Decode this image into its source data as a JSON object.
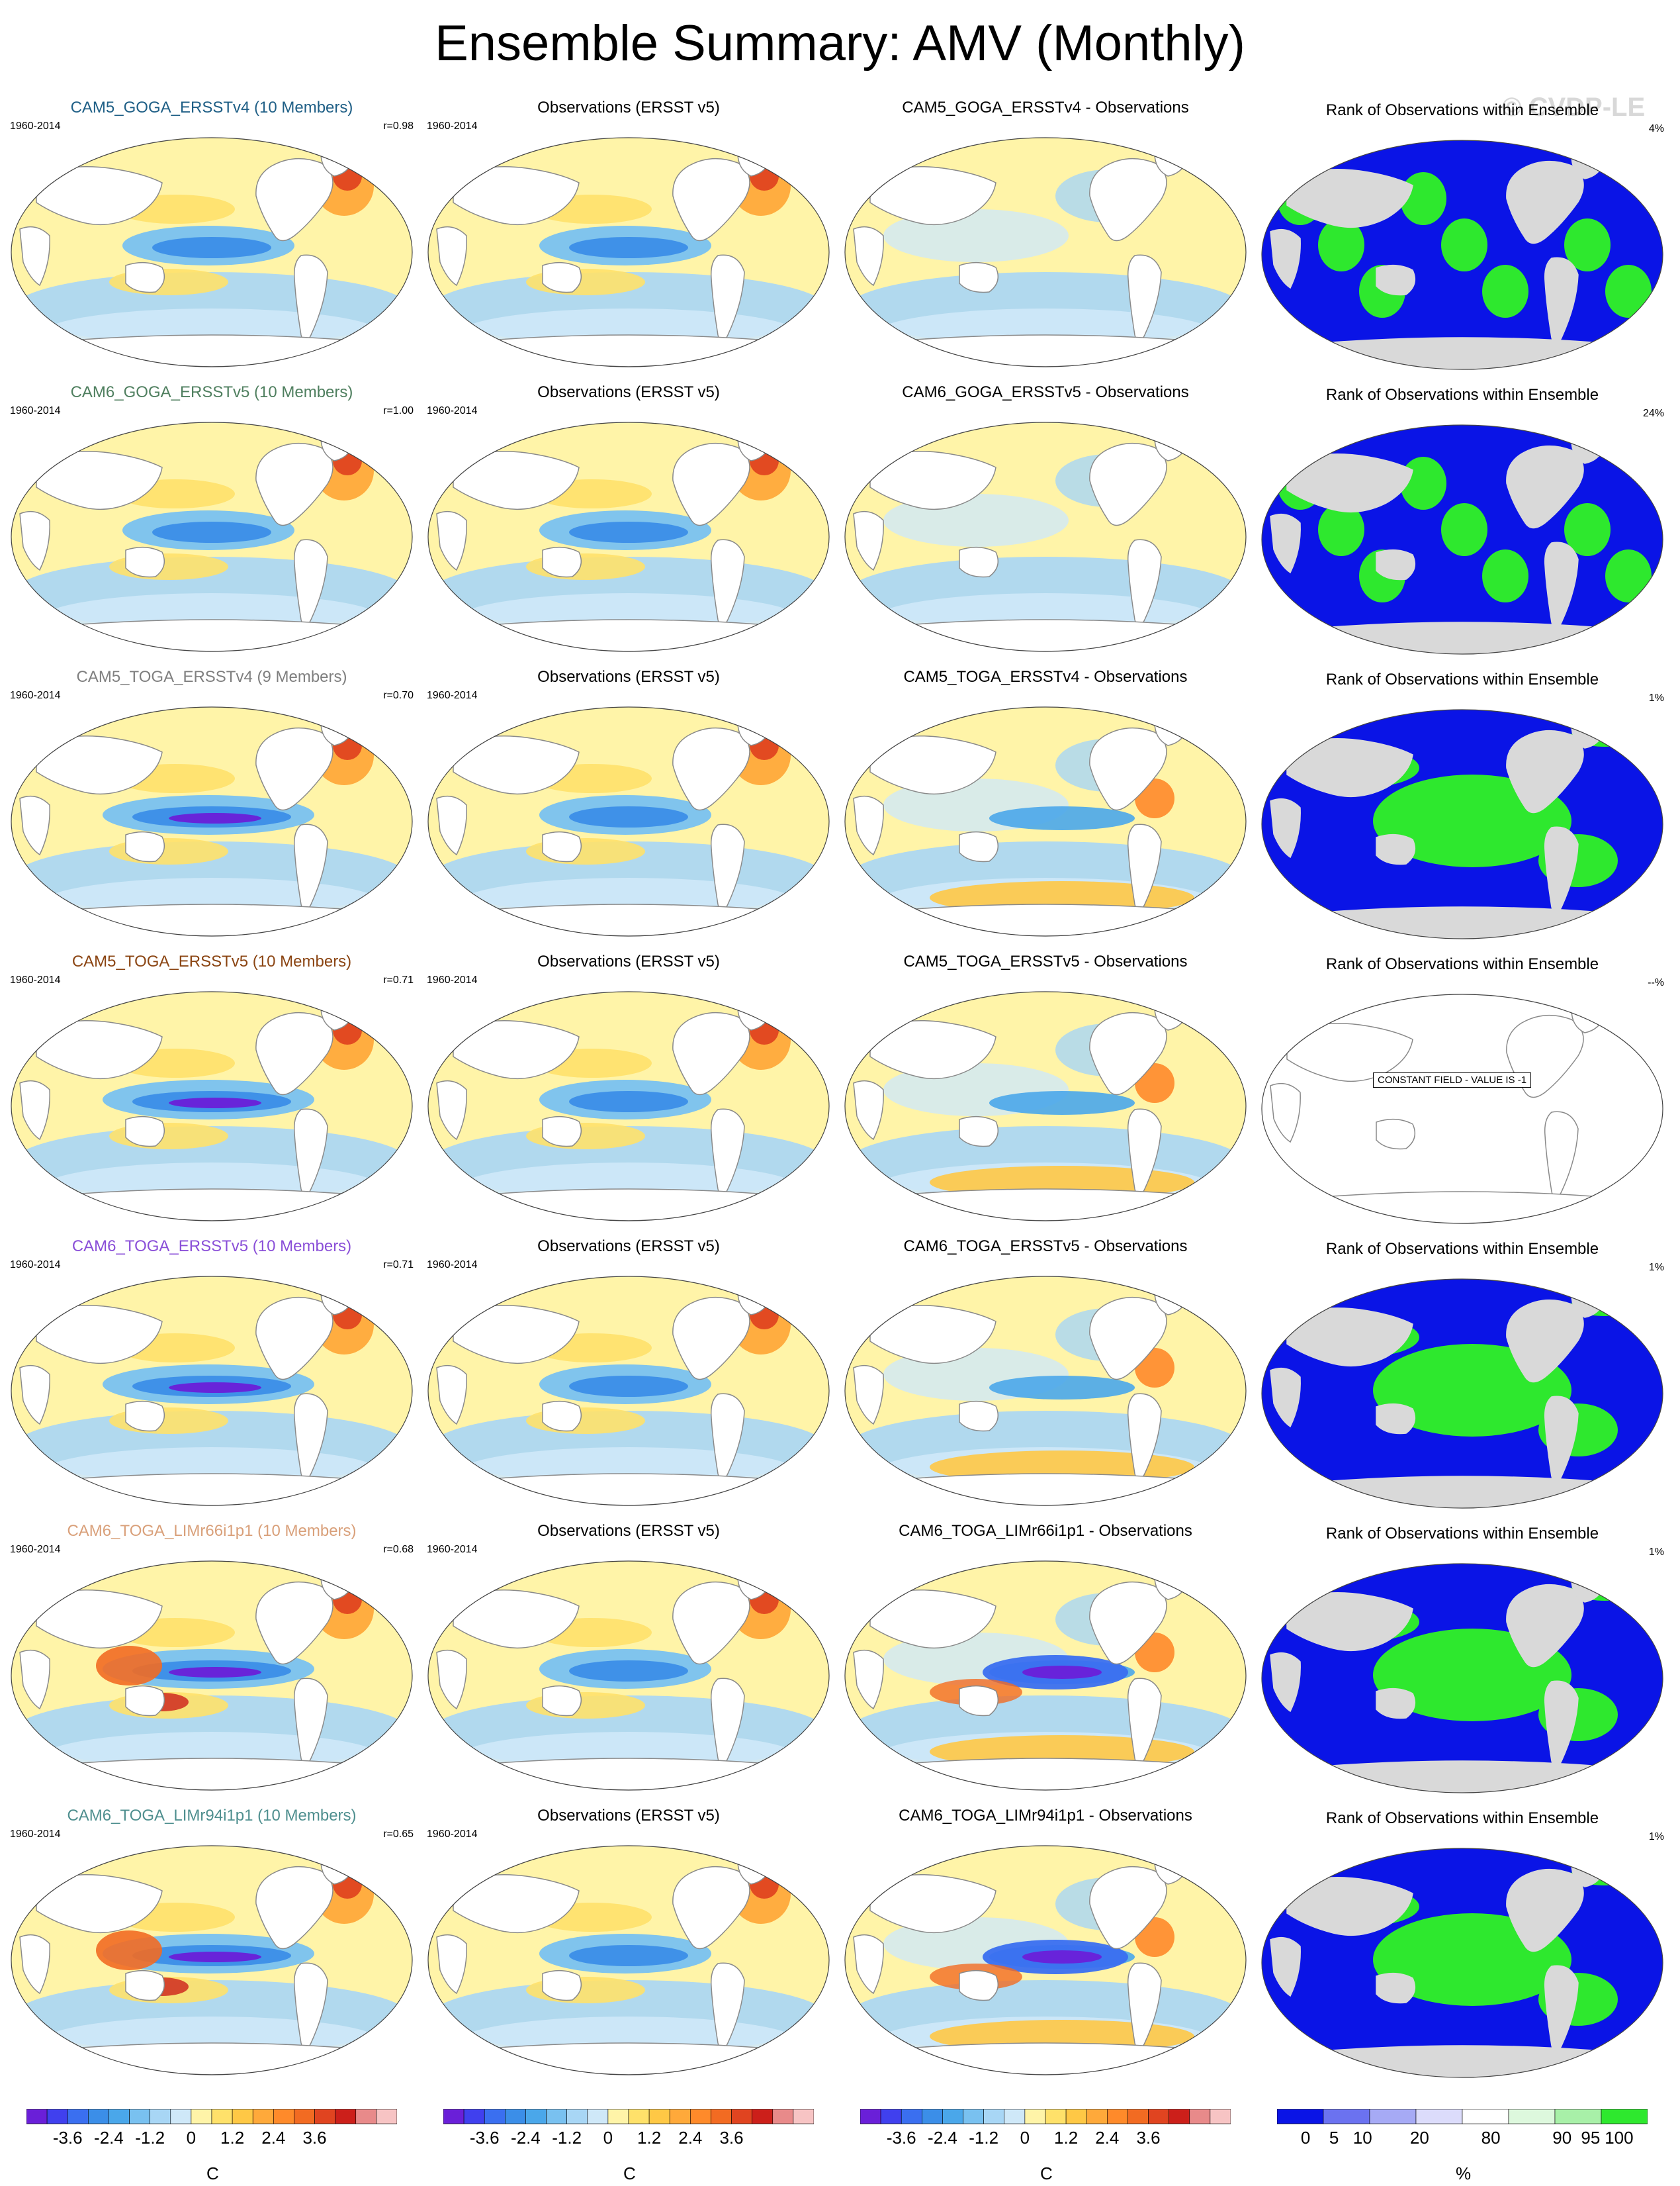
{
  "title": "Ensemble Summary: AMV (Monthly)",
  "watermark": "© CVDP-LE",
  "rows": [
    {
      "ens_title": "CAM5_GOGA_ERSSTv4 (10 Members)",
      "ens_color": "#1f5f86",
      "years": "1960-2014",
      "r": "r=0.98",
      "obs_title": "Observations (ERSST v5)",
      "diff_title": "CAM5_GOGA_ERSSTv4 - Observations",
      "rank_title": "Rank of Observations within Ensemble",
      "rank_pct": "4%"
    },
    {
      "ens_title": "CAM6_GOGA_ERSSTv5 (10 Members)",
      "ens_color": "#4f7f5f",
      "years": "1960-2014",
      "r": "r=1.00",
      "obs_title": "Observations (ERSST v5)",
      "diff_title": "CAM6_GOGA_ERSSTv5 - Observations",
      "rank_title": "Rank of Observations within Ensemble",
      "rank_pct": "24%"
    },
    {
      "ens_title": "CAM5_TOGA_ERSSTv4 (9 Members)",
      "ens_color": "#7f7f7f",
      "years": "1960-2014",
      "r": "r=0.70",
      "obs_title": "Observations (ERSST v5)",
      "diff_title": "CAM5_TOGA_ERSSTv4 - Observations",
      "rank_title": "Rank of Observations within Ensemble",
      "rank_pct": "1%"
    },
    {
      "ens_title": "CAM5_TOGA_ERSSTv5 (10 Members)",
      "ens_color": "#8b4513",
      "years": "1960-2014",
      "r": "r=0.71",
      "obs_title": "Observations (ERSST v5)",
      "diff_title": "CAM5_TOGA_ERSSTv5 - Observations",
      "rank_title": "Rank of Observations within Ensemble",
      "rank_pct": "--%",
      "constant_field": "CONSTANT FIELD - VALUE IS -1"
    },
    {
      "ens_title": "CAM6_TOGA_ERSSTv5 (10 Members)",
      "ens_color": "#8a4fd8",
      "years": "1960-2014",
      "r": "r=0.71",
      "obs_title": "Observations (ERSST v5)",
      "diff_title": "CAM6_TOGA_ERSSTv5 - Observations",
      "rank_title": "Rank of Observations within Ensemble",
      "rank_pct": "1%"
    },
    {
      "ens_title": "CAM6_TOGA_LIMr66i1p1 (10 Members)",
      "ens_color": "#d9a07a",
      "years": "1960-2014",
      "r": "r=0.68",
      "obs_title": "Observations (ERSST v5)",
      "diff_title": "CAM6_TOGA_LIMr66i1p1 - Observations",
      "rank_title": "Rank of Observations within Ensemble",
      "rank_pct": "1%"
    },
    {
      "ens_title": "CAM6_TOGA_LIMr94i1p1 (10 Members)",
      "ens_color": "#4f8f8f",
      "years": "1960-2014",
      "r": "r=0.65",
      "obs_title": "Observations (ERSST v5)",
      "diff_title": "CAM6_TOGA_LIMr94i1p1 - Observations",
      "rank_title": "Rank of Observations within Ensemble",
      "rank_pct": "1%"
    }
  ],
  "temp_colorbar": {
    "unit": "C",
    "labels": [
      "-3.6",
      "-2.4",
      "-1.2",
      "0",
      "1.2",
      "2.4",
      "3.6"
    ],
    "colors": [
      "#6a1fd8",
      "#4040ee",
      "#3a6ff0",
      "#3b8ee8",
      "#4aa7ea",
      "#79c1f0",
      "#a8d6f5",
      "#cfe8f8",
      "#fff4a8",
      "#ffe16a",
      "#ffc845",
      "#ffa93a",
      "#ff8a2a",
      "#f26b22",
      "#e04420",
      "#cc1f1a",
      "#e88a8a",
      "#f7c4c4"
    ]
  },
  "rank_colorbar": {
    "unit": "%",
    "labels": [
      "0",
      "5",
      "10",
      "20",
      "80",
      "90",
      "95",
      "100"
    ],
    "colors": [
      "#0a14e6",
      "#6b72f0",
      "#a6aaf5",
      "#dcdcfb",
      "#ffffff",
      "#ddf8dd",
      "#a8f0a8",
      "#2ee82e"
    ]
  },
  "map_colors": {
    "land": "#ffffff",
    "coast": "#8a8a8a",
    "neutral": "#cfe8f8",
    "rank_land": "#d9d9d9",
    "rank_low": "#0a14e6",
    "rank_high": "#2ee82e"
  }
}
